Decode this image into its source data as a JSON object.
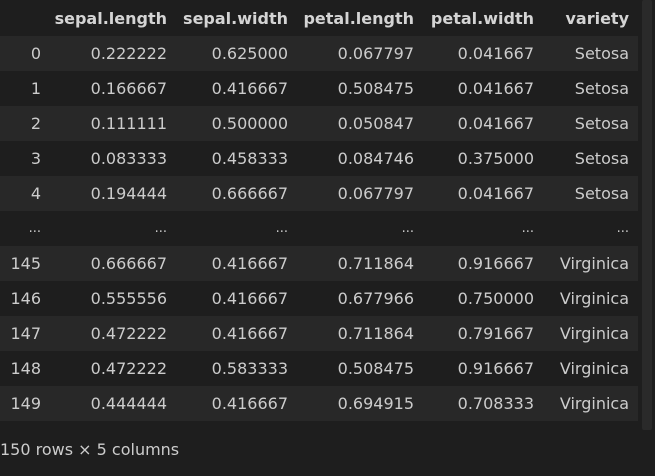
{
  "dataframe": {
    "index_header": "",
    "columns": [
      "sepal.length",
      "sepal.width",
      "petal.length",
      "petal.width",
      "variety"
    ],
    "rows": [
      {
        "index": "0",
        "cells": [
          "0.222222",
          "0.625000",
          "0.067797",
          "0.041667",
          "Setosa"
        ]
      },
      {
        "index": "1",
        "cells": [
          "0.166667",
          "0.416667",
          "0.508475",
          "0.041667",
          "Setosa"
        ]
      },
      {
        "index": "2",
        "cells": [
          "0.111111",
          "0.500000",
          "0.050847",
          "0.041667",
          "Setosa"
        ]
      },
      {
        "index": "3",
        "cells": [
          "0.083333",
          "0.458333",
          "0.084746",
          "0.375000",
          "Setosa"
        ]
      },
      {
        "index": "4",
        "cells": [
          "0.194444",
          "0.666667",
          "0.067797",
          "0.041667",
          "Setosa"
        ]
      },
      {
        "index": "...",
        "cells": [
          "...",
          "...",
          "...",
          "...",
          "..."
        ]
      },
      {
        "index": "145",
        "cells": [
          "0.666667",
          "0.416667",
          "0.711864",
          "0.916667",
          "Virginica"
        ]
      },
      {
        "index": "146",
        "cells": [
          "0.555556",
          "0.416667",
          "0.677966",
          "0.750000",
          "Virginica"
        ]
      },
      {
        "index": "147",
        "cells": [
          "0.472222",
          "0.416667",
          "0.711864",
          "0.791667",
          "Virginica"
        ]
      },
      {
        "index": "148",
        "cells": [
          "0.472222",
          "0.583333",
          "0.508475",
          "0.916667",
          "Virginica"
        ]
      },
      {
        "index": "149",
        "cells": [
          "0.444444",
          "0.416667",
          "0.694915",
          "0.708333",
          "Virginica"
        ]
      }
    ],
    "footer": "150 rows × 5 columns"
  },
  "colors": {
    "background": "#1e1e1e",
    "stripe": "#282828",
    "text": "#cccccc"
  }
}
